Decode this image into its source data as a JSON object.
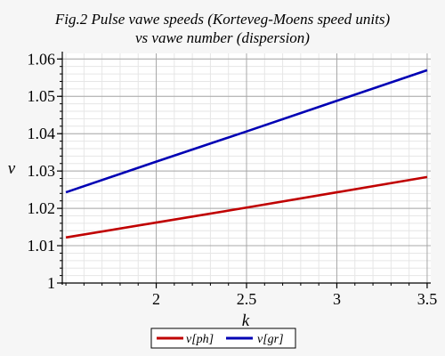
{
  "chart_data": {
    "type": "line",
    "title": [
      "Fig.2 Pulse vawe speeds (Korteveg-Moens speed units)",
      "vs vawe number (dispersion)"
    ],
    "xlabel": "k",
    "ylabel": "v",
    "xlim": [
      1.48,
      3.52
    ],
    "ylim": [
      1.0,
      1.0615
    ],
    "x_ticks": [
      2,
      2.5,
      3,
      3.5
    ],
    "x_tick_labels": [
      "2",
      "2.5",
      "3",
      "3.5"
    ],
    "y_ticks": [
      1.0,
      1.01,
      1.02,
      1.03,
      1.04,
      1.05,
      1.06
    ],
    "y_tick_labels": [
      "1",
      "1.01",
      "1.02",
      "1.03",
      "1.04",
      "1.05",
      "1.06"
    ],
    "grid": true,
    "legend_position": "bottom-center",
    "series": [
      {
        "name": "v[ph]",
        "color": "#c00000",
        "x": [
          1.5,
          2.0,
          2.5,
          3.0,
          3.5
        ],
        "y": [
          1.0122,
          1.0162,
          1.0202,
          1.0243,
          1.0284
        ]
      },
      {
        "name": "v[gr]",
        "color": "#0000b4",
        "x": [
          1.5,
          2.0,
          2.5,
          3.0,
          3.5
        ],
        "y": [
          1.0243,
          1.0325,
          1.0406,
          1.0488,
          1.057
        ]
      }
    ]
  }
}
